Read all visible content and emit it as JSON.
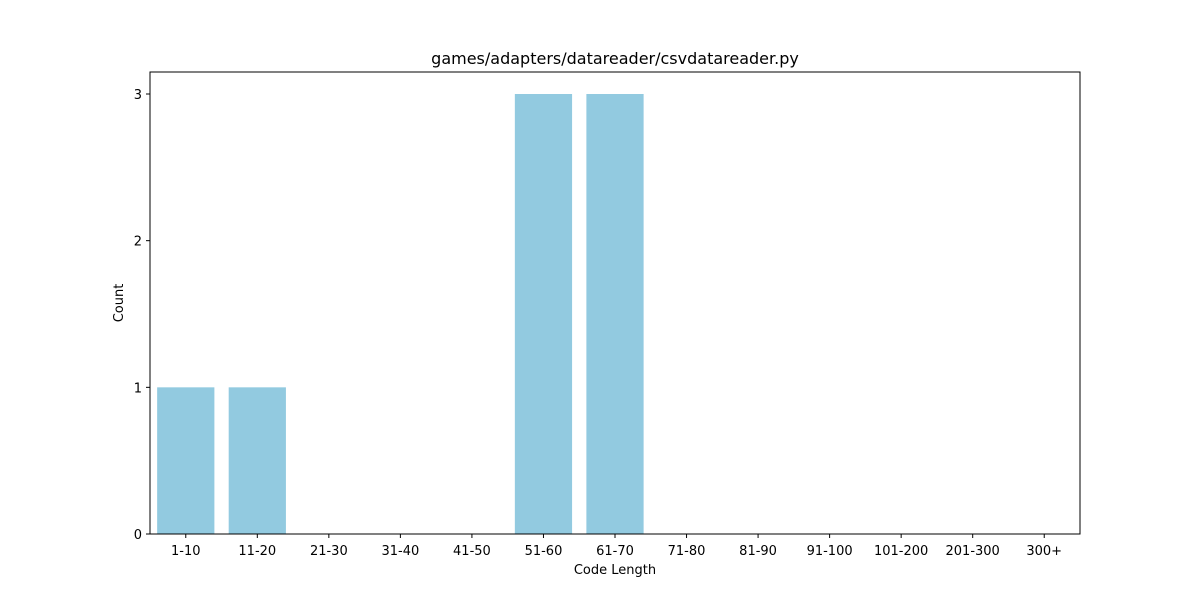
{
  "chart_data": {
    "type": "bar",
    "title": "games/adapters/datareader/csvdatareader.py",
    "xlabel": "Code Length",
    "ylabel": "Count",
    "categories": [
      "1-10",
      "11-20",
      "21-30",
      "31-40",
      "41-50",
      "51-60",
      "61-70",
      "71-80",
      "81-90",
      "91-100",
      "101-200",
      "201-300",
      "300+"
    ],
    "values": [
      1,
      1,
      0,
      0,
      0,
      3,
      3,
      0,
      0,
      0,
      0,
      0,
      0
    ],
    "ylim": [
      0,
      3.15
    ],
    "yticks": [
      0,
      1,
      2,
      3
    ],
    "bar_color": "#92cae0",
    "grid": false,
    "legend": "none"
  }
}
